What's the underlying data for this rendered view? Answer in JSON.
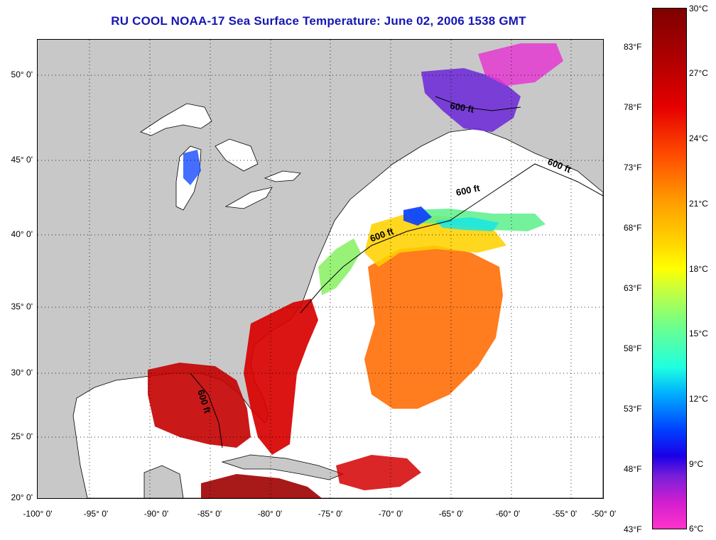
{
  "title": "RU COOL  NOAA-17  Sea Surface Temperature:  June 02, 2006 1538 GMT",
  "lat_labels": [
    "50° 0'",
    "45° 0'",
    "40° 0'",
    "35° 0'",
    "30° 0'",
    "25° 0'",
    "20° 0'"
  ],
  "lon_labels": [
    "-100° 0'",
    "-95° 0'",
    "-90° 0'",
    "-85° 0'",
    "-80° 0'",
    "-75° 0'",
    "-70° 0'",
    "-65° 0'",
    "-60° 0'",
    "-55° 0'",
    "-50° 0'"
  ],
  "bathy_label": "600 ft",
  "colorbar": {
    "celsius": [
      "30°C",
      "27°C",
      "24°C",
      "21°C",
      "18°C",
      "15°C",
      "12°C",
      "9°C",
      "6°C"
    ],
    "fahrenheit": [
      "83°F",
      "78°F",
      "73°F",
      "68°F",
      "63°F",
      "58°F",
      "53°F",
      "48°F",
      "43°F"
    ]
  },
  "colors": {
    "land": "#c8c8c8",
    "title": "#1616b4",
    "no_data": "#ffffff"
  }
}
